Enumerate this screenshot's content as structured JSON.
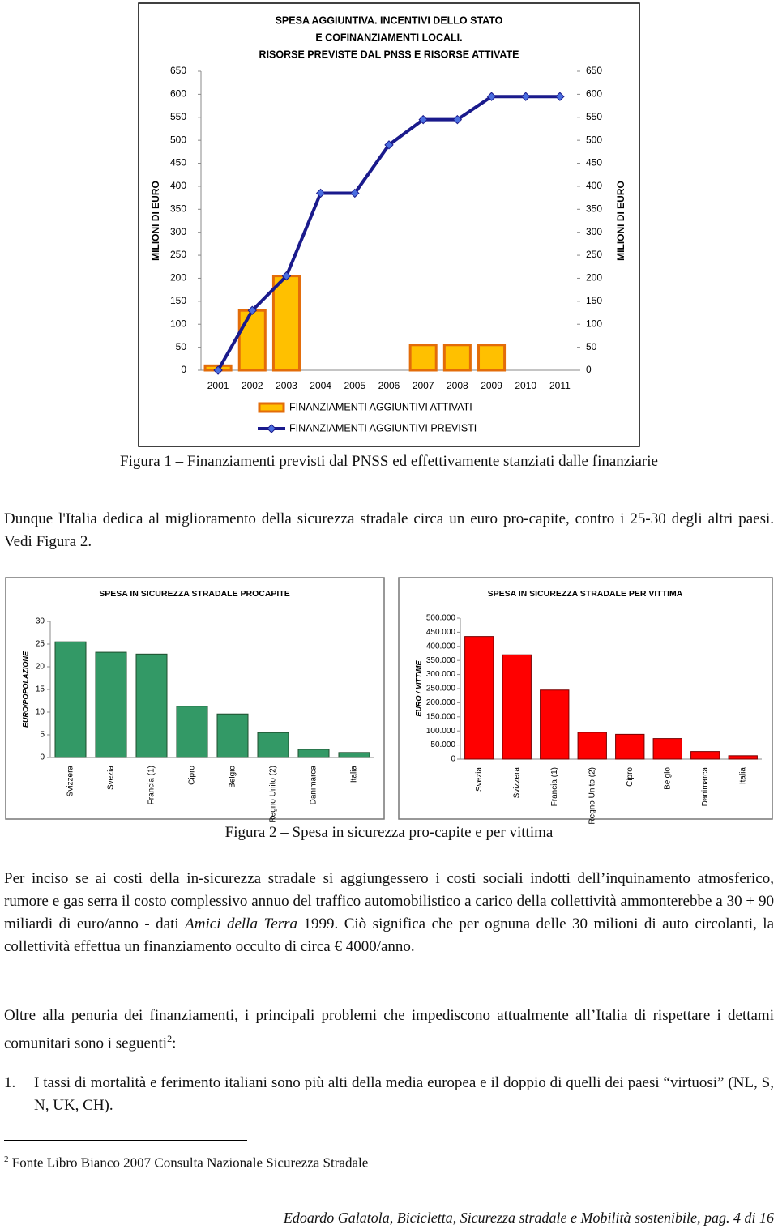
{
  "chart_data": [
    {
      "type": "combo",
      "title": [
        "SPESA AGGIUNTIVA.  INCENTIVI DELLO STATO",
        "E COFINANZIAMENTI LOCALI.",
        "RISORSE PREVISTE DAL PNSS E RISORSE ATTIVATE"
      ],
      "y_label": "MILIONI DI EURO",
      "y2_label": "MILIONI DI EURO",
      "categories": [
        "2001",
        "2002",
        "2003",
        "2004",
        "2005",
        "2006",
        "2007",
        "2008",
        "2009",
        "2010",
        "2011"
      ],
      "series": [
        {
          "name": "FINANZIAMENTI AGGIUNTIVI ATTIVATI",
          "type": "bar",
          "color": "#ffc000",
          "values": [
            10,
            130,
            205,
            null,
            null,
            null,
            55,
            55,
            55,
            null,
            null
          ]
        },
        {
          "name": "FINANZIAMENTI AGGIUNTIVI PREVISTI",
          "type": "line",
          "axis": "y2",
          "color": "#1a1a8c",
          "values": [
            0,
            130,
            205,
            385,
            385,
            490,
            545,
            545,
            595,
            595,
            595
          ]
        }
      ],
      "ylim": [
        0,
        650
      ],
      "yticks": [
        0,
        50,
        100,
        150,
        200,
        250,
        300,
        350,
        400,
        450,
        500,
        550,
        600,
        650
      ],
      "y2lim": [
        0,
        650
      ],
      "y2ticks": [
        0,
        50,
        100,
        150,
        200,
        250,
        300,
        350,
        400,
        450,
        500,
        550,
        600,
        650
      ],
      "grid": false,
      "legend": "bottom"
    },
    {
      "type": "bar",
      "title": [
        "SPESA IN SICUREZZA STRADALE PROCAPITE"
      ],
      "y_label": "EURO/POPOLAZIONE",
      "categories": [
        "Svizzera",
        "Svezia",
        "Francia (1)",
        "Cipro",
        "Belgio",
        "Regno Unito (2)",
        "Danimarca",
        "Italia"
      ],
      "values": [
        25.5,
        23.2,
        22.8,
        11.3,
        9.6,
        5.5,
        1.8,
        1.1
      ],
      "color": "#339966",
      "ylim": [
        0,
        30
      ],
      "yticks": [
        0,
        5,
        10,
        15,
        20,
        25,
        30
      ],
      "grid": false
    },
    {
      "type": "bar",
      "title": [
        "SPESA IN SICUREZZA STRADALE PER VITTIMA"
      ],
      "y_label": "EURO / VITTIME",
      "categories": [
        "Svezia",
        "Svizzera",
        "Francia (1)",
        "Regno Unito (2)",
        "Cipro",
        "Belgio",
        "Danimarca",
        "Italia"
      ],
      "values": [
        435000,
        370000,
        245000,
        95000,
        88000,
        73000,
        27000,
        12000
      ],
      "color": "#ff0000",
      "ylim": [
        0,
        500000
      ],
      "yticks": [
        0,
        {
          "value": 50000,
          "label": "50.000"
        },
        {
          "value": 100000,
          "label": "100.000"
        },
        {
          "value": 150000,
          "label": "150.000"
        },
        {
          "value": 200000,
          "label": "200.000"
        },
        {
          "value": 250000,
          "label": "250.000"
        },
        {
          "value": 300000,
          "label": "300.000"
        },
        {
          "value": 350000,
          "label": "350.000"
        },
        {
          "value": 400000,
          "label": "400.000"
        },
        {
          "value": 450000,
          "label": "450.000"
        },
        {
          "value": 500000,
          "label": "500.000"
        }
      ],
      "grid": false
    }
  ],
  "captions": [
    "Figura 1 – Finanziamenti previsti dal PNSS ed effettivamente stanziati dalle finanziarie",
    "Figura 2 – Spesa in sicurezza pro-capite e per vittima"
  ],
  "paragraphs": [
    [
      "Dunque l'Italia dedica al miglioramento della sicurezza stradale circa un euro pro-capite, contro i 25-30 degli altri paesi. Vedi Figura 2."
    ],
    [
      "Per inciso se ai costi della in-sicurezza stradale si aggiungessero i costi sociali indotti dell’inquinamento atmosferico, rumore e gas serra il costo complessivo annuo del traffico automobilistico a carico della collettività ammonterebbe a 30 + 90 miliardi di euro/anno - dati",
      "Amici della Terra",
      "1999. Ciò significa che per ognuna delle 30 milioni di auto circolanti, la collettività effettua un finanziamento occulto di circa € 4000/anno."
    ],
    [
      "Oltre alla penuria dei finanziamenti, i principali problemi che impediscono attualmente all’Italia di rispettare i dettami comunitari sono i seguenti",
      "2",
      ":"
    ]
  ],
  "list": [
    {
      "number": "1.",
      "text": "I tassi di mortalità e ferimento italiani sono più alti della media europea e il doppio di quelli dei paesi “virtuosi” (NL, S, N, UK, CH)."
    }
  ],
  "footnote": {
    "number": "2",
    "text": "Fonte Libro Bianco 2007 Consulta Nazionale Sicurezza Stradale"
  },
  "footer": "Edoardo Galatola, Bicicletta, Sicurezza stradale e Mobilità sostenibile, pag. 4 di 16"
}
